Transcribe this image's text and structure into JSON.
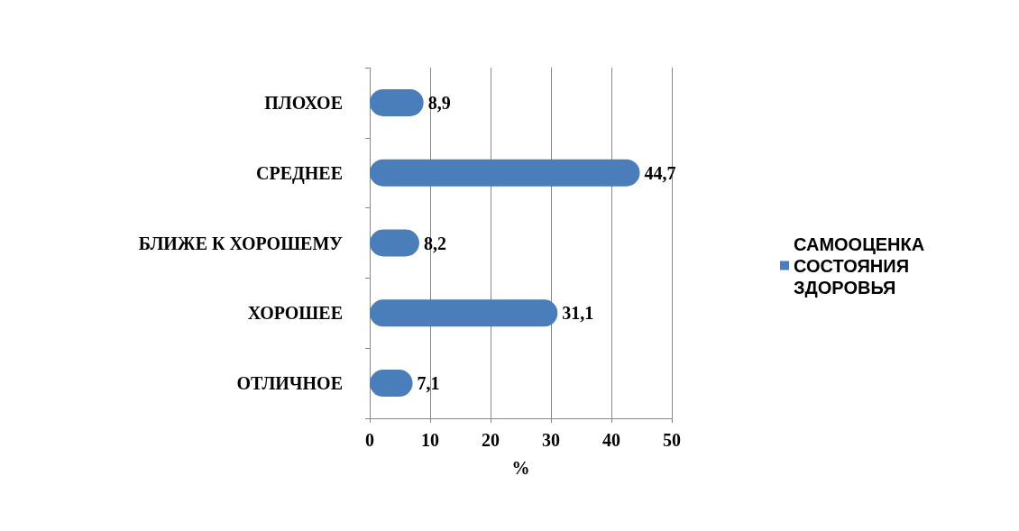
{
  "chart_data": {
    "type": "bar",
    "orientation": "horizontal",
    "categories": [
      "ПЛОХОЕ",
      "СРЕДНЕЕ",
      "БЛИЖЕ К ХОРОШЕМУ",
      "ХОРОШЕЕ",
      "ОТЛИЧНОЕ"
    ],
    "series": [
      {
        "name": "САМООЦЕНКА СОСТОЯНИЯ ЗДОРОВЬЯ",
        "color": "#4a7ebb",
        "values": [
          8.9,
          44.7,
          8.2,
          31.1,
          7.1
        ],
        "value_labels": [
          "8,9",
          "44,7",
          "8,2",
          "31,1",
          "7,1"
        ]
      }
    ],
    "xlim": [
      0,
      50
    ],
    "xticks": [
      0,
      10,
      20,
      30,
      40,
      50
    ],
    "xlabel": "%",
    "grid": "x",
    "legend": "right"
  }
}
